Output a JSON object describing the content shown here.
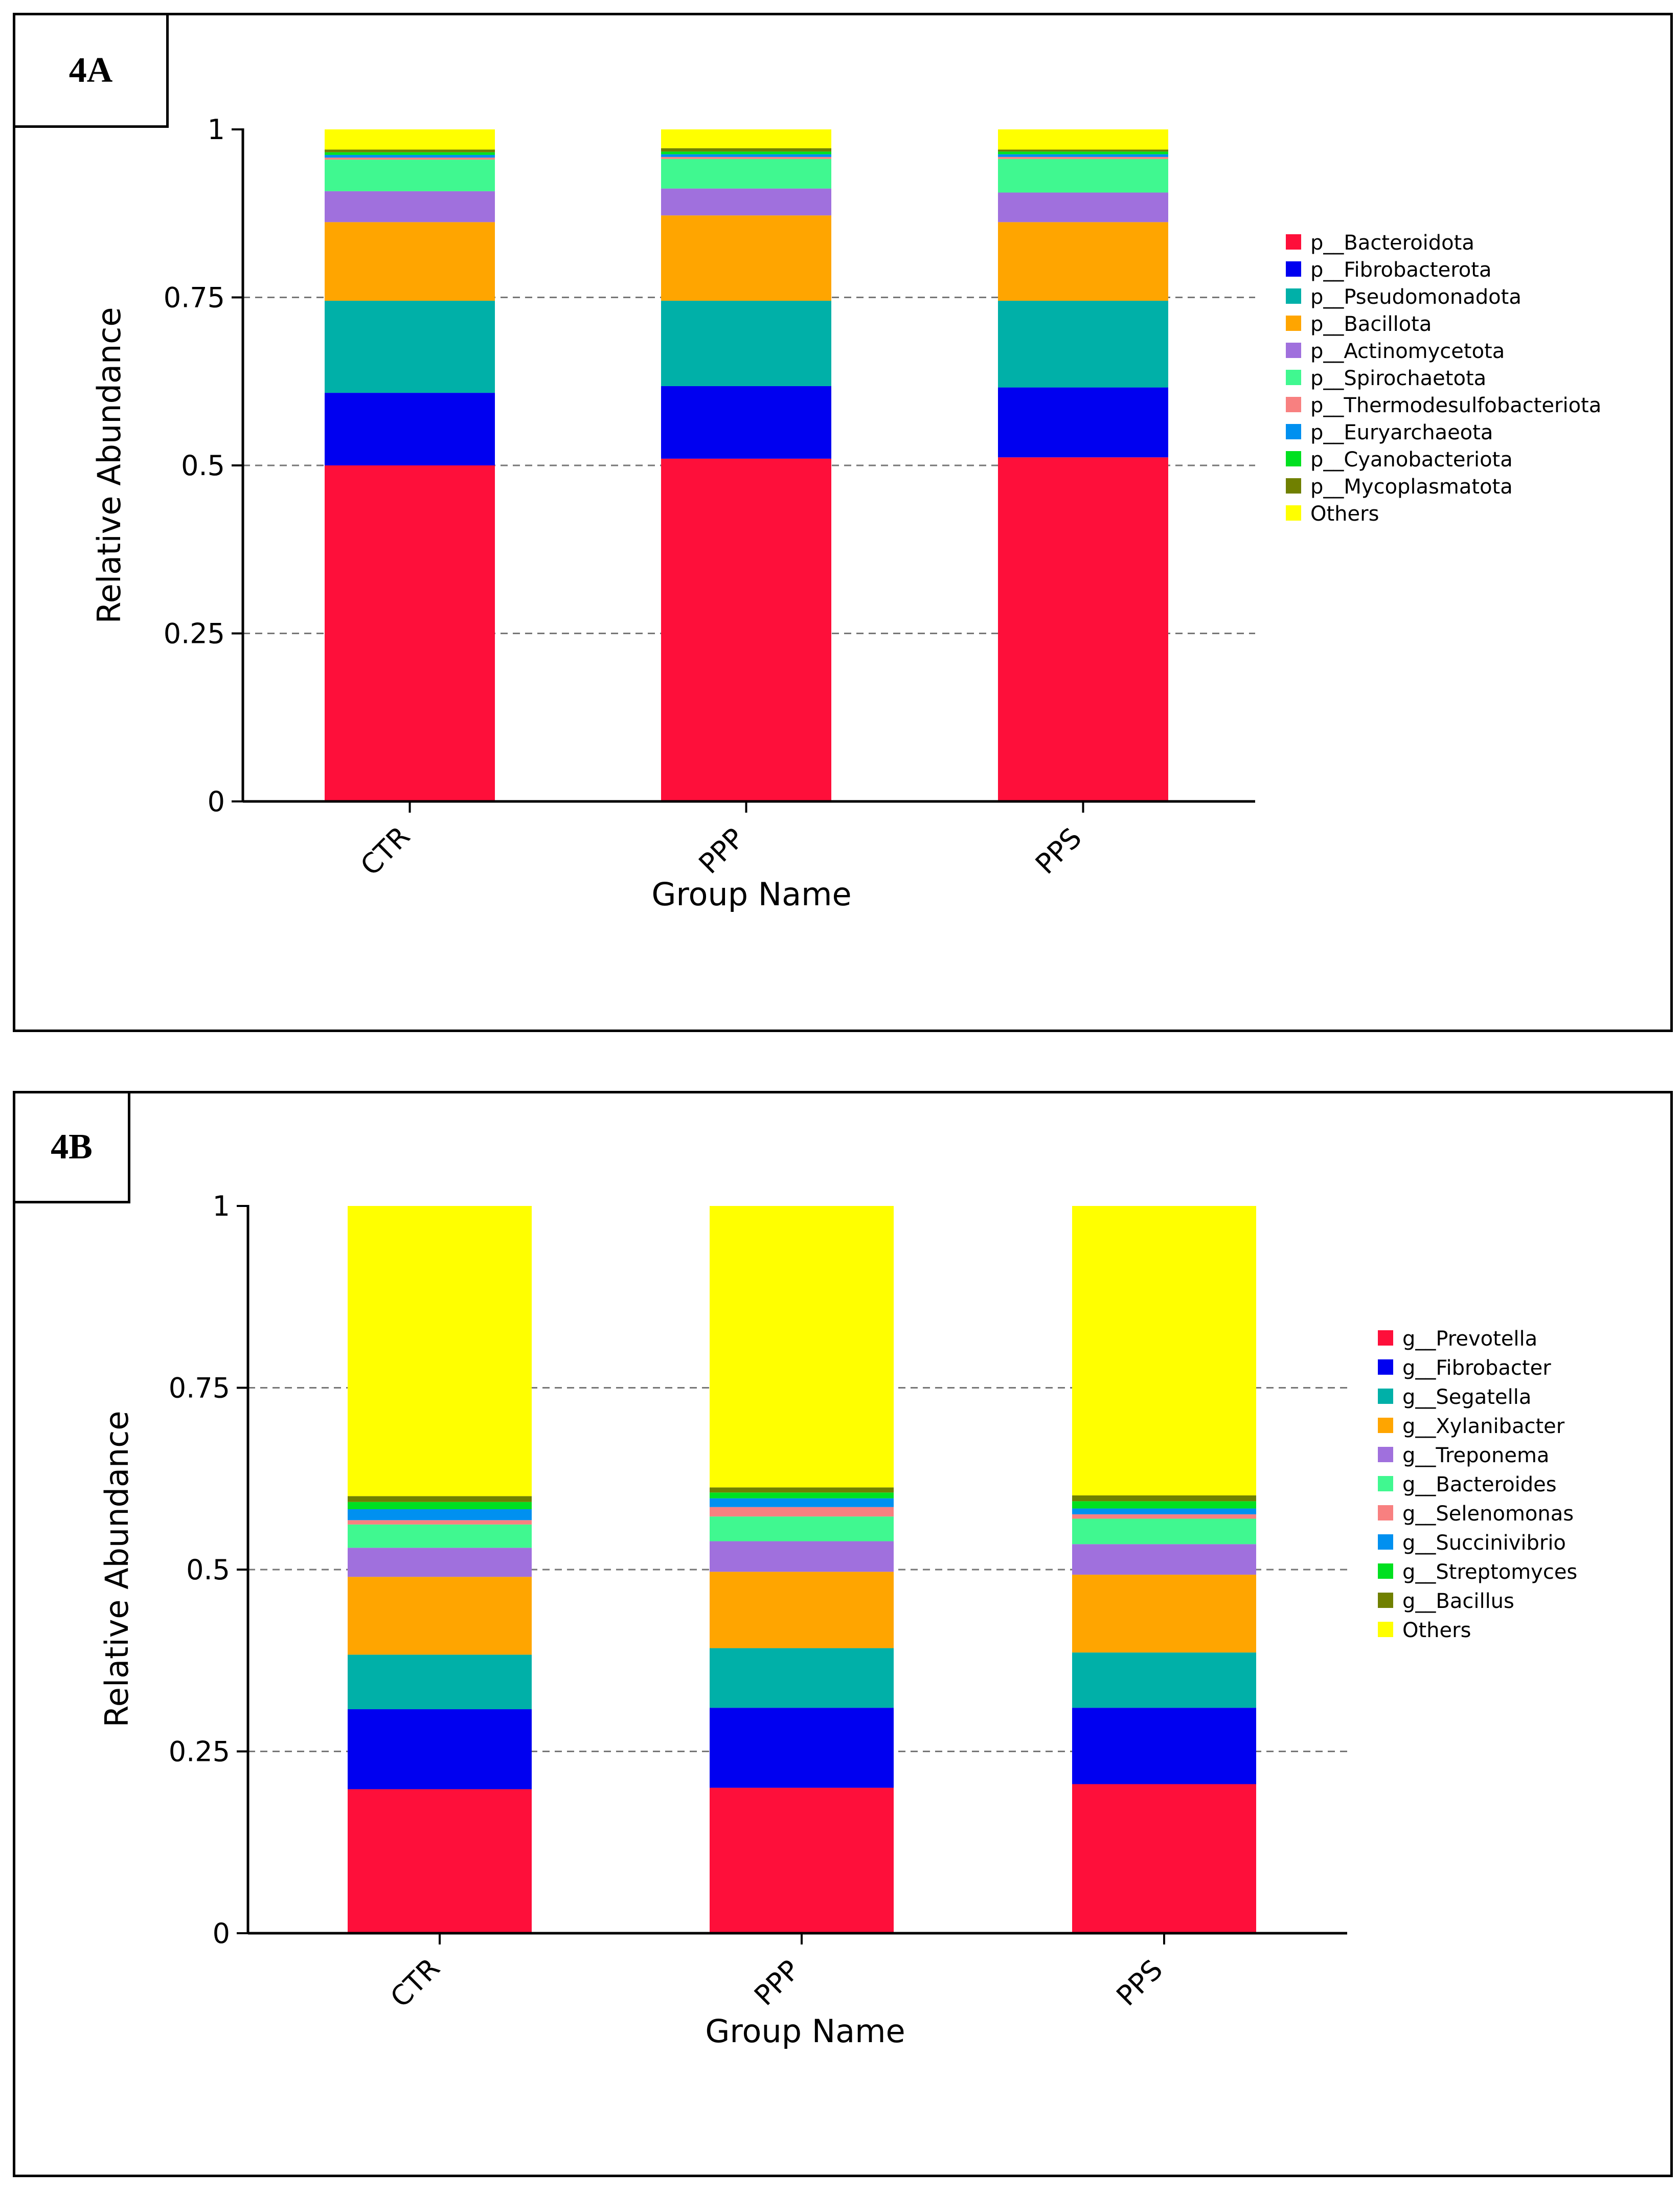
{
  "panels": [
    {
      "label": "4A"
    },
    {
      "label": "4B"
    }
  ],
  "chart_data": [
    {
      "type": "bar",
      "stacked": true,
      "title": "",
      "xlabel": "Group Name",
      "ylabel": "Relative Abundance",
      "ylim": [
        0,
        1
      ],
      "yticks": [
        "0",
        "0.25",
        "0.5",
        "0.75",
        "1"
      ],
      "ytick_values": [
        0,
        0.25,
        0.5,
        0.75,
        1
      ],
      "grid": "horizontal dashed",
      "legend_position": "right",
      "categories": [
        "CTR",
        "PPP",
        "PPS"
      ],
      "series": [
        {
          "name": "p__Bacteroidota",
          "color": "#fe0f3a",
          "values": [
            0.5,
            0.51,
            0.512
          ]
        },
        {
          "name": "p__Fibrobacterota",
          "color": "#0000f0",
          "values": [
            0.108,
            0.108,
            0.104
          ]
        },
        {
          "name": "p__Pseudomonadota",
          "color": "#00b0a8",
          "values": [
            0.137,
            0.127,
            0.129
          ]
        },
        {
          "name": "p__Bacillota",
          "color": "#ffa500",
          "values": [
            0.117,
            0.127,
            0.117
          ]
        },
        {
          "name": "p__Actinomycetota",
          "color": "#a070dd",
          "values": [
            0.046,
            0.04,
            0.044
          ]
        },
        {
          "name": "p__Spirochaetota",
          "color": "#40f890",
          "values": [
            0.047,
            0.044,
            0.05
          ]
        },
        {
          "name": "p__Thermodesulfobacteriota",
          "color": "#f88080",
          "values": [
            0.003,
            0.003,
            0.003
          ]
        },
        {
          "name": "p__Euryarchaeota",
          "color": "#0090f0",
          "values": [
            0.004,
            0.004,
            0.004
          ]
        },
        {
          "name": "p__Cyanobacteriota",
          "color": "#00e020",
          "values": [
            0.004,
            0.004,
            0.004
          ]
        },
        {
          "name": "p__Mycoplasmatota",
          "color": "#708000",
          "values": [
            0.004,
            0.005,
            0.003
          ]
        },
        {
          "name": "Others",
          "color": "#ffff00",
          "values": [
            0.03,
            0.028,
            0.03
          ]
        }
      ]
    },
    {
      "type": "bar",
      "stacked": true,
      "title": "",
      "xlabel": "Group Name",
      "ylabel": "Relative Abundance",
      "ylim": [
        0,
        1
      ],
      "yticks": [
        "0",
        "0.25",
        "0.5",
        "0.75",
        "1"
      ],
      "ytick_values": [
        0,
        0.25,
        0.5,
        0.75,
        1
      ],
      "grid": "horizontal dashed",
      "legend_position": "right",
      "categories": [
        "CTR",
        "PPP",
        "PPS"
      ],
      "series": [
        {
          "name": "g__Prevotella",
          "color": "#fe0f3a",
          "values": [
            0.198,
            0.2,
            0.205
          ]
        },
        {
          "name": "g__Fibrobacter",
          "color": "#0000f0",
          "values": [
            0.11,
            0.11,
            0.105
          ]
        },
        {
          "name": "g__Segatella",
          "color": "#00b0a8",
          "values": [
            0.075,
            0.082,
            0.076
          ]
        },
        {
          "name": "g__Xylanibacter",
          "color": "#ffa500",
          "values": [
            0.107,
            0.105,
            0.107
          ]
        },
        {
          "name": "g__Treponema",
          "color": "#a070dd",
          "values": [
            0.04,
            0.042,
            0.042
          ]
        },
        {
          "name": "g__Bacteroides",
          "color": "#40f890",
          "values": [
            0.032,
            0.034,
            0.035
          ]
        },
        {
          "name": "g__Selenomonas",
          "color": "#f88080",
          "values": [
            0.006,
            0.013,
            0.006
          ]
        },
        {
          "name": "g__Succinivibrio",
          "color": "#0090f0",
          "values": [
            0.015,
            0.012,
            0.008
          ]
        },
        {
          "name": "g__Streptomyces",
          "color": "#00e020",
          "values": [
            0.01,
            0.008,
            0.01
          ]
        },
        {
          "name": "g__Bacillus",
          "color": "#708000",
          "values": [
            0.008,
            0.007,
            0.008
          ]
        },
        {
          "name": "Others",
          "color": "#ffff00",
          "values": [
            0.399,
            0.387,
            0.398
          ]
        }
      ]
    }
  ]
}
